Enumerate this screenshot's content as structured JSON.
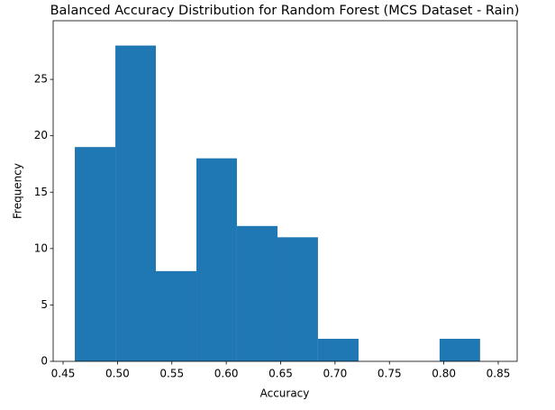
{
  "chart_data": {
    "type": "histogram",
    "title": "Balanced Accuracy Distribution for Random Forest (MCS Dataset - Rain)",
    "x_label": "Accuracy",
    "y_label": "Frequency",
    "bins": [
      0.4608,
      0.4981,
      0.5353,
      0.5726,
      0.6098,
      0.6471,
      0.6843,
      0.7216,
      0.7588,
      0.7961,
      0.8333
    ],
    "values": [
      19,
      28,
      8,
      18,
      12,
      11,
      2,
      0,
      0,
      2
    ],
    "color": "#1f77b4",
    "xlim": [
      0.4409,
      0.8674
    ],
    "xticks": [
      0.45,
      {
        "value": 0.5,
        "label": "0.50"
      },
      0.55,
      {
        "value": 0.6,
        "label": "0.60"
      },
      0.65,
      {
        "value": 0.7,
        "label": "0.70"
      },
      0.75,
      {
        "value": 0.8,
        "label": "0.80"
      },
      0.85
    ],
    "ylim": [
      0,
      30.2
    ],
    "yticks": [
      0,
      5,
      10,
      15,
      20,
      25
    ]
  }
}
